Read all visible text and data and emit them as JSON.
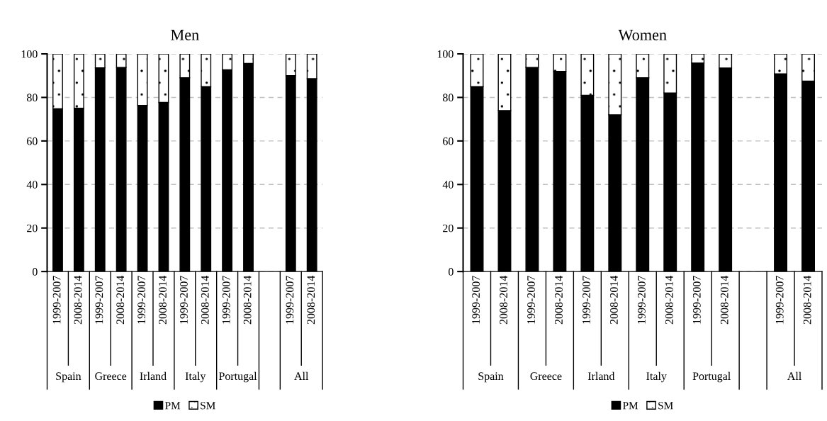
{
  "chart_data": [
    {
      "type": "bar",
      "title": "Men",
      "stacked": true,
      "categories": [
        "1999-2007",
        "2008-2014",
        "1999-2007",
        "2008-2014",
        "1999-2007",
        "2008-2014",
        "1999-2007",
        "2008-2014",
        "1999-2007",
        "2008-2014",
        null,
        "1999-2007",
        "2008-2014"
      ],
      "series": [
        {
          "name": "PM",
          "color": "#000000",
          "values": [
            74.8,
            75.0,
            93.6,
            93.8,
            76.3,
            77.7,
            89.0,
            85.0,
            92.7,
            95.6,
            null,
            90.0,
            88.6
          ]
        },
        {
          "name": "SM",
          "color": "#ffffff",
          "values": [
            25.2,
            25.0,
            6.4,
            6.2,
            23.7,
            22.3,
            11.0,
            15.0,
            7.3,
            4.4,
            null,
            10.0,
            11.4
          ]
        }
      ],
      "ylim": [
        0,
        100
      ],
      "yticks": [
        0,
        20,
        40,
        60,
        80,
        100
      ],
      "grid": "y",
      "legend": "bottom",
      "annotations": [
        "Spain",
        "Greece",
        "Irland",
        "Italy",
        "Portugal",
        "All"
      ]
    },
    {
      "type": "bar",
      "title": "Women",
      "stacked": true,
      "categories": [
        "1999-2007",
        "2008-2014",
        "1999-2007",
        "2008-2014",
        "1999-2007",
        "2008-2014",
        "1999-2007",
        "2008-2014",
        "1999-2007",
        "2008-2014",
        null,
        "1999-2007",
        "2008-2014"
      ],
      "series": [
        {
          "name": "PM",
          "color": "#000000",
          "values": [
            85.0,
            74.0,
            93.8,
            92.0,
            81.0,
            72.0,
            89.0,
            82.0,
            95.8,
            93.5,
            null,
            90.8,
            87.5
          ]
        },
        {
          "name": "SM",
          "color": "#ffffff",
          "values": [
            15.0,
            26.0,
            6.2,
            8.0,
            19.0,
            28.0,
            11.0,
            18.0,
            4.2,
            6.5,
            null,
            9.2,
            12.5
          ]
        }
      ],
      "ylim": [
        0,
        100
      ],
      "yticks": [
        0,
        20,
        40,
        60,
        80,
        100
      ],
      "grid": "y",
      "legend": "bottom",
      "annotations": [
        "Spain",
        "Greece",
        "Irland",
        "Italy",
        "Portugal",
        "All"
      ]
    }
  ]
}
